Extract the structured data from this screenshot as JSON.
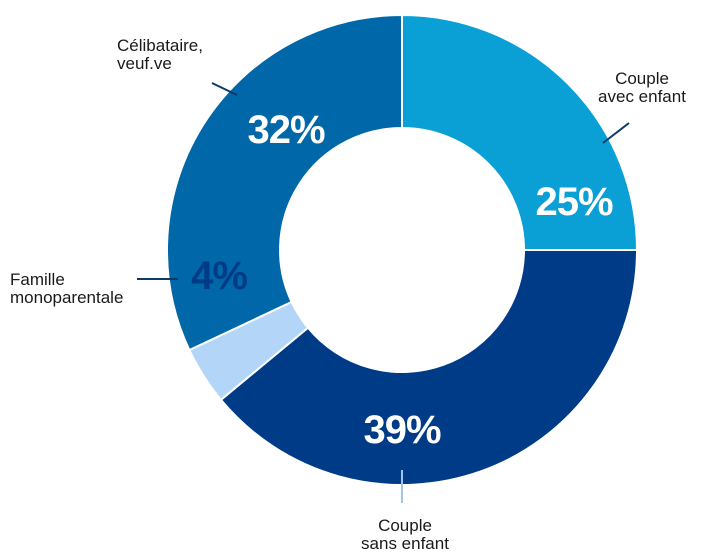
{
  "chart_data": {
    "type": "pie",
    "donut": true,
    "start_angle_deg": 0,
    "direction": "clockwise",
    "slices": [
      {
        "label": [
          "Couple",
          "avec enfant"
        ],
        "value": 25,
        "display": "25%",
        "color": "#0aa0d6",
        "text_color": "#ffffff"
      },
      {
        "label": [
          "Couple",
          "sans enfant"
        ],
        "value": 39,
        "display": "39%",
        "color": "#003b87",
        "text_color": "#ffffff"
      },
      {
        "label": [
          "Famille",
          "monoparentale"
        ],
        "value": 4,
        "display": "4%",
        "color": "#b3d5f7",
        "text_color": "#003b87"
      },
      {
        "label": [
          "Célibataire,",
          "veuf.ve"
        ],
        "value": 32,
        "display": "32%",
        "color": "#0067a8",
        "text_color": "#ffffff"
      }
    ],
    "leader_color": "#0b3a6b",
    "label_color": "#1a1a1a"
  }
}
